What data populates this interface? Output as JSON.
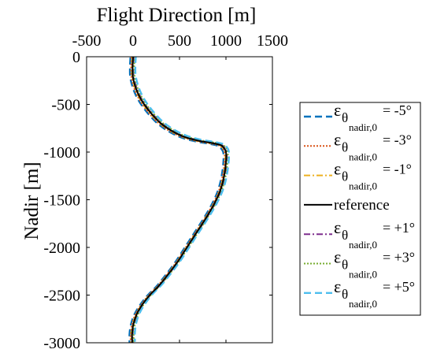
{
  "chart_data": {
    "type": "line",
    "title": "",
    "xlabel": "Flight Direction [m]",
    "ylabel": "Nadir [m]",
    "xlim": [
      -500,
      1500
    ],
    "ylim": [
      -3000,
      0
    ],
    "x_ticks": [
      -500,
      0,
      500,
      1000,
      1500
    ],
    "x_tick_labels": [
      "-500",
      "0",
      "500",
      "1000",
      "1500"
    ],
    "y_ticks": [
      0,
      -500,
      -1000,
      -1500,
      -2000,
      -2500,
      -3000
    ],
    "y_tick_labels": [
      "0",
      "-500",
      "-1000",
      "-1500",
      "-2000",
      "-2500",
      "-3000"
    ],
    "x_axis_position": "top",
    "grid": false,
    "legend_position": "outside-right",
    "reference_path": {
      "x": [
        0,
        -5,
        -3,
        20,
        60,
        120,
        200,
        300,
        420,
        550,
        700,
        820,
        900,
        950,
        980,
        1000,
        1000,
        980,
        940,
        870,
        780,
        680,
        580,
        480,
        380,
        280,
        180,
        100,
        40,
        5,
        -10,
        -10
      ],
      "y": [
        0,
        -100,
        -200,
        -300,
        -400,
        -500,
        -600,
        -700,
        -780,
        -840,
        -880,
        -900,
        -915,
        -930,
        -960,
        -1000,
        -1100,
        -1250,
        -1400,
        -1550,
        -1700,
        -1850,
        -2000,
        -2150,
        -2280,
        -2400,
        -2500,
        -2600,
        -2700,
        -2800,
        -2900,
        -3000
      ]
    },
    "series": [
      {
        "name_prefix": "ε",
        "name_sub": "θ",
        "name_subsub": "nadir,0",
        "name_value": "= -5°",
        "color": "#0072BD",
        "dash": "9,5",
        "width": 2.4,
        "x_offset": -28,
        "y_offset": -8
      },
      {
        "name_prefix": "ε",
        "name_sub": "θ",
        "name_subsub": "nadir,0",
        "name_value": "= -3°",
        "color": "#D95319",
        "dash": "2,2",
        "width": 2.0,
        "x_offset": -16,
        "y_offset": -5
      },
      {
        "name_prefix": "ε",
        "name_sub": "θ",
        "name_subsub": "nadir,0",
        "name_value": "= -1°",
        "color": "#EDB120",
        "dash": "8,3,2,3",
        "width": 2.0,
        "x_offset": -6,
        "y_offset": -2
      },
      {
        "name": "reference",
        "color": "#000000",
        "dash": "",
        "width": 2.0,
        "x_offset": 0,
        "y_offset": 0
      },
      {
        "name_prefix": "ε",
        "name_sub": "θ",
        "name_subsub": "nadir,0",
        "name_value": "= +1°",
        "color": "#7E2F8E",
        "dash": "8,3,2,3",
        "width": 2.0,
        "x_offset": 8,
        "y_offset": 3
      },
      {
        "name_prefix": "ε",
        "name_sub": "θ",
        "name_subsub": "nadir,0",
        "name_value": "= +3°",
        "color": "#77AC30",
        "dash": "2,2",
        "width": 2.0,
        "x_offset": 18,
        "y_offset": 6
      },
      {
        "name_prefix": "ε",
        "name_sub": "θ",
        "name_subsub": "nadir,0",
        "name_value": "= +5°",
        "color": "#4DBEEE",
        "dash": "9,5",
        "width": 2.4,
        "x_offset": 30,
        "y_offset": 10
      }
    ]
  }
}
